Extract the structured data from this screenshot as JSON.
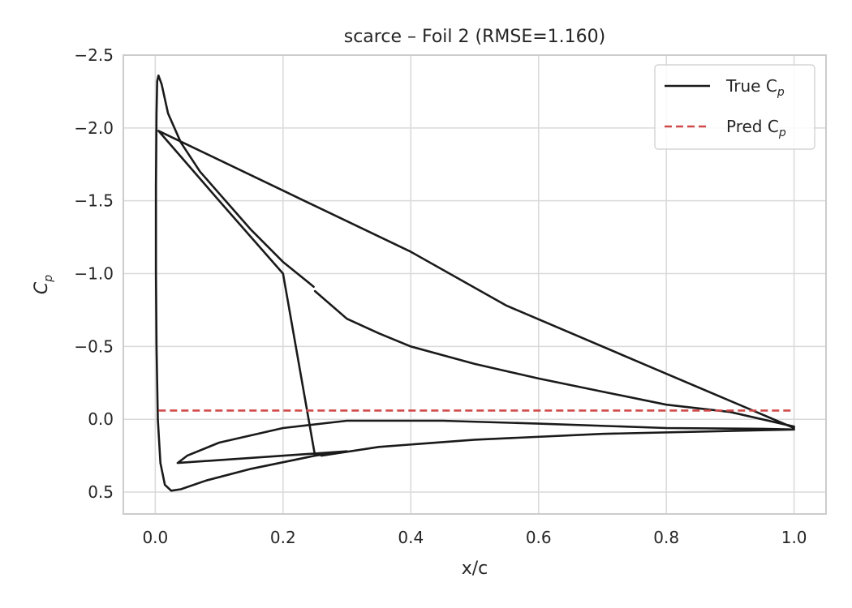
{
  "chart_data": {
    "type": "line",
    "title": "scarce – Foil 2 (RMSE=1.160)",
    "xlabel": "x/c",
    "ylabel": {
      "main": "C",
      "sub": "p"
    },
    "xlim": [
      -0.05,
      1.05
    ],
    "ylim": [
      0.65,
      -2.5
    ],
    "y_inverted": true,
    "grid": true,
    "legend_position": "top-right",
    "x_ticks": [
      0.0,
      0.2,
      0.4,
      0.6,
      0.8,
      1.0
    ],
    "x_tick_labels": [
      "0.0",
      "0.2",
      "0.4",
      "0.6",
      "0.8",
      "1.0"
    ],
    "y_ticks": [
      -2.5,
      -2.0,
      -1.5,
      -1.0,
      -0.5,
      0.0,
      0.5
    ],
    "y_tick_labels": [
      "−2.5",
      "−2.0",
      "−1.5",
      "−1.0",
      "−0.5",
      "0.0",
      "0.5"
    ],
    "series": [
      {
        "name": "True C_p",
        "legend": {
          "main": "True C",
          "sub": "p"
        },
        "color": "#1a1a1a",
        "style": "solid",
        "segments": [
          [
            [
              1.0,
              0.06
            ],
            [
              0.78,
              -0.35
            ],
            [
              0.55,
              -0.78
            ],
            [
              0.4,
              -1.15
            ],
            [
              0.2,
              -1.57
            ],
            [
              0.005,
              -1.98
            ],
            [
              0.1,
              -1.5
            ],
            [
              0.2,
              -1.0
            ],
            [
              0.25,
              0.25
            ]
          ],
          [
            [
              0.26,
              0.25
            ],
            [
              0.35,
              0.19
            ],
            [
              0.5,
              0.14
            ],
            [
              0.7,
              0.1
            ],
            [
              0.9,
              0.08
            ],
            [
              1.0,
              0.07
            ],
            [
              0.95,
              0.065
            ],
            [
              0.8,
              0.06
            ],
            [
              0.6,
              0.03
            ],
            [
              0.45,
              0.01
            ],
            [
              0.3,
              0.01
            ],
            [
              0.2,
              0.06
            ],
            [
              0.1,
              0.16
            ],
            [
              0.05,
              0.25
            ],
            [
              0.035,
              0.3
            ],
            [
              0.3,
              0.22
            ],
            [
              0.25,
              0.25
            ]
          ],
          [
            [
              0.25,
              0.25
            ],
            [
              0.15,
              0.34
            ],
            [
              0.08,
              0.42
            ],
            [
              0.04,
              0.48
            ],
            [
              0.025,
              0.49
            ],
            [
              0.015,
              0.45
            ],
            [
              0.008,
              0.3
            ],
            [
              0.004,
              0.0
            ],
            [
              0.002,
              -0.5
            ],
            [
              0.001,
              -1.0
            ],
            [
              0.001,
              -1.6
            ],
            [
              0.002,
              -2.1
            ],
            [
              0.003,
              -2.32
            ],
            [
              0.005,
              -2.36
            ],
            [
              0.01,
              -2.3
            ],
            [
              0.02,
              -2.1
            ],
            [
              0.04,
              -1.9
            ],
            [
              0.07,
              -1.7
            ],
            [
              0.1,
              -1.55
            ],
            [
              0.15,
              -1.3
            ],
            [
              0.2,
              -1.08
            ],
            [
              0.248,
              -0.91
            ]
          ],
          [
            [
              0.25,
              -0.88
            ],
            [
              0.3,
              -0.69
            ],
            [
              0.35,
              -0.59
            ],
            [
              0.4,
              -0.5
            ],
            [
              0.5,
              -0.38
            ],
            [
              0.6,
              -0.28
            ],
            [
              0.7,
              -0.19
            ],
            [
              0.8,
              -0.1
            ],
            [
              0.9,
              -0.05
            ],
            [
              1.0,
              0.05
            ]
          ]
        ]
      },
      {
        "name": "Pred C_p",
        "legend": {
          "main": "Pred C",
          "sub": "p"
        },
        "color": "#d04a4a",
        "style": "dashed",
        "segments": [
          [
            [
              0.005,
              -0.06
            ],
            [
              1.0,
              -0.06
            ]
          ]
        ]
      }
    ]
  }
}
